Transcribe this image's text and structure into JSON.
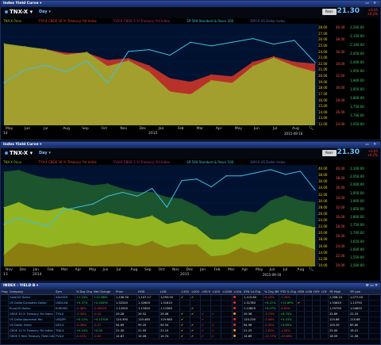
{
  "top_chart": {
    "window_title": "Index Yield Curve",
    "symbol": "TNX-X",
    "period": "Day",
    "rt_button": "Real-Time",
    "last": "21.30",
    "change_lines": [
      "+0.05",
      "+0.2%"
    ],
    "legend": [
      {
        "text": "TNX-X Price",
        "color": "#8fbf3a"
      },
      {
        "text": "TYX-X CBOE 30 Yr Treasury Yld Index",
        "color": "#e8412c"
      },
      {
        "text": "FVX-X CBOE 5 Yr Treasury Yld Index",
        "color": "#c02a8a"
      },
      {
        "text": "SP-500 Standard & Poors 500",
        "color": "#3bc2e6"
      },
      {
        "text": "DXY-X US Dollar Index",
        "color": "#5a6fd0"
      }
    ],
    "x_labels": [
      "May",
      "Jun",
      "Jul",
      "Aug",
      "Sep",
      "Oct",
      "Nov",
      "Dec",
      "Jan",
      "Feb",
      "Mar",
      "Apr",
      "May",
      "Jun",
      "Jul",
      "Aug"
    ],
    "year_left": "14",
    "year_mid": "2015",
    "date_stamp": "2015-09-16",
    "y_cols": [
      {
        "color": "#f0d030",
        "labels": [
          "28.00",
          "27.00",
          "26.00",
          "25.00",
          "24.00",
          "23.00",
          "22.00",
          "21.00",
          "20.00",
          "19.00",
          "18.00",
          "17.00",
          "16.00",
          "15.00",
          "14.00",
          "13.00",
          "12.00"
        ]
      },
      {
        "color": "#ff5a5a",
        "labels": [
          "40.00",
          "38.00",
          "36.00",
          "34.00",
          "32.00",
          "30.00",
          "28.00",
          "26.00",
          "24.00"
        ]
      },
      {
        "color": "#3bd06a",
        "labels": [
          "2,200.00",
          "2,150.00",
          "2,100.00",
          "2,050.00",
          "2,000.00",
          "1,950.00",
          "1,900.00",
          "1,850.00",
          "1,800.00",
          "1,750.00",
          "1,700.00",
          "1,650.00"
        ]
      }
    ],
    "chart_data": {
      "type": "area",
      "x": [
        "May",
        "Jun",
        "Jul",
        "Aug",
        "Sep",
        "Oct",
        "Nov",
        "Dec",
        "Jan",
        "Feb",
        "Mar",
        "Apr",
        "May",
        "Jun",
        "Jul",
        "Aug"
      ],
      "series": [
        {
          "name": "TYX-X",
          "color": "#c8352a",
          "values": [
            34,
            33.5,
            33,
            32,
            32,
            30,
            30.5,
            28.5,
            25,
            24,
            26,
            25.5,
            29.5,
            31,
            29.5,
            29
          ]
        },
        {
          "name": "TNX-X",
          "color": "#9fa830",
          "values": [
            26.5,
            26,
            25.5,
            24.5,
            25,
            22.5,
            23.5,
            21.5,
            18,
            17.5,
            20,
            19.5,
            22.5,
            24,
            22.5,
            21.5
          ]
        },
        {
          "name": "SP-500",
          "color": "#3bc2e6",
          "values": [
            1880,
            1950,
            1975,
            1940,
            2000,
            1880,
            2050,
            2060,
            2030,
            2100,
            2080,
            2100,
            2120,
            2090,
            2110,
            1990
          ]
        }
      ]
    }
  },
  "bottom_chart": {
    "window_title": "Index Yield Curve",
    "symbol": "TNX-X",
    "period": "Day",
    "rt_button": "Real-Time",
    "last": "21.30",
    "change_lines": [
      "+0.05",
      "+0.2%"
    ],
    "legend": [
      {
        "text": "TNX-X Price",
        "color": "#8fbf3a"
      },
      {
        "text": "TYX-X CBOE 30 Yr Treasury Yld Index",
        "color": "#e8412c"
      },
      {
        "text": "FVX-X CBOE 5 Yr Treasury Yld Index",
        "color": "#c02a8a"
      },
      {
        "text": "SP-500 Standard & Poors 500",
        "color": "#3bc2e6"
      },
      {
        "text": "DXY-X US Dollar Index",
        "color": "#5a6fd0"
      }
    ],
    "x_labels": [
      "Nov",
      "Dec",
      "Jan",
      "Feb",
      "Mar",
      "Apr",
      "May",
      "Jun",
      "Jul",
      "Aug",
      "Sep",
      "Oct",
      "Nov",
      "Dec",
      "Jan",
      "Feb",
      "Mar",
      "Apr",
      "May",
      "Jun",
      "Jul",
      "Aug"
    ],
    "year_left": "13",
    "year_a": "2014",
    "year_b": "2015",
    "date_stamp": "2015-09-16",
    "y_cols": [
      {
        "color": "#f0d030",
        "labels": [
          "40.00",
          "38.00",
          "36.00",
          "34.00",
          "32.00",
          "30.00",
          "28.00",
          "26.00",
          "24.00",
          "22.00",
          "20.00",
          "18.00",
          "16.00",
          "14.00",
          "12.00",
          "10.00"
        ]
      },
      {
        "color": "#ff5a5a",
        "labels": [
          "40.00",
          "38.00",
          "36.00",
          "34.00",
          "32.00",
          "30.00",
          "28.00",
          "26.00",
          "24.00",
          "22.00",
          "20.00"
        ]
      },
      {
        "color": "#3bd06a",
        "labels": [
          "2,100.00",
          "2,050.00",
          "2,000.00",
          "1,950.00",
          "1,900.00",
          "1,850.00",
          "1,800.00",
          "1,750.00",
          "1,700.00",
          "1,650.00",
          "1,600.00",
          "1,550.00",
          "1,500.00"
        ]
      }
    ],
    "chart_data": {
      "type": "area",
      "x": [
        "Nov",
        "Dec",
        "Jan",
        "Feb",
        "Mar",
        "Apr",
        "May",
        "Jun",
        "Jul",
        "Aug",
        "Sep",
        "Oct",
        "Nov",
        "Dec",
        "Jan",
        "Feb",
        "Mar",
        "Apr",
        "May",
        "Jun",
        "Jul",
        "Aug"
      ],
      "series": [
        {
          "name": "TYX-X",
          "color": "#1d5a2e",
          "values": [
            38,
            38.5,
            37,
            36,
            36,
            35,
            34,
            34.5,
            33,
            32,
            32,
            30.5,
            30,
            28,
            25,
            25,
            26.5,
            26,
            29.5,
            31,
            29.5,
            29
          ]
        },
        {
          "name": "TNX-X",
          "color": "#9bbd1f",
          "values": [
            27.5,
            29,
            27,
            26.5,
            27.5,
            26.5,
            25,
            26,
            25,
            24,
            25,
            22.5,
            23.5,
            21.5,
            18,
            18,
            20,
            19.5,
            22.5,
            24,
            22.5,
            21.5
          ]
        },
        {
          "name": "FVX-X",
          "color": "#8a7a10",
          "values": [
            13.5,
            17,
            16.5,
            15.5,
            16.5,
            17,
            16,
            16.5,
            17,
            16,
            17.5,
            15.5,
            16.5,
            16.5,
            13,
            13.5,
            15.5,
            14,
            15.5,
            17,
            16.5,
            15
          ]
        },
        {
          "name": "SP-500",
          "color": "#3bc2e6",
          "values": [
            1770,
            1810,
            1780,
            1760,
            1860,
            1880,
            1900,
            1950,
            1975,
            1950,
            2000,
            1880,
            2050,
            2060,
            2010,
            2080,
            2080,
            2100,
            2120,
            2090,
            2110,
            1990
          ]
        }
      ]
    }
  },
  "table": {
    "window_title": "INDEX - YIELD B",
    "headers": [
      "Flag",
      "Company",
      "Sym",
      "% Day Chg",
      "Net Change",
      "Price",
      "HOD",
      "LOD",
      "<150 MA",
      "<200 MA",
      "<50 MA",
      "<100 MA",
      "<1000 MA",
      "<10d MA",
      "SYN 1d Chg",
      "% Chg 3M",
      "YTD % Chg",
      "HOW",
      "LOW",
      "HOY",
      "LOY",
      "YR High",
      "YR Low"
    ],
    "rows": [
      {
        "flag": "",
        "company": "Gold/US Dollar",
        "sym": "XAUUSD",
        "pct": "+1.24%",
        "net": "+13.3961",
        "price": "1,106.30",
        "hod": "1,107.17",
        "lod": "1,093.95",
        "m150": "chk",
        "m200": "chk",
        "m50": "",
        "m100": "",
        "m1000": "",
        "m10": "dot-red",
        "syn": "1,115.80",
        "chg3m": "-6.10%",
        "ytd": "-7.20%",
        "how": "",
        "low": "",
        "hoy": "",
        "loy": "",
        "yrh": "1,308.10",
        "yrl": "1,077.00",
        "tone": "pos"
      },
      {
        "flag": "",
        "company": "US Dollar/Canadian Dollar",
        "sym": "USDCAD",
        "pct": "+0.37%",
        "net": "+0.00492",
        "price": "1.32240",
        "hod": "1.32600",
        "lod": "1.31810",
        "m150": "",
        "m200": "",
        "m50": "",
        "m100": "",
        "m1000": "",
        "m10": "dot-red",
        "syn": "1.31780",
        "chg3m": "+6.21%",
        "ytd": "+13.89%",
        "how": "chk",
        "low": "",
        "hoy": "",
        "loy": "",
        "yrh": "1.33620",
        "yrl": "1.13750",
        "tone": "pos"
      },
      {
        "flag": "",
        "company": "Euro/US Dollar",
        "sym": "EURUSD",
        "pct": "-0.38%",
        "net": "-0.00425",
        "price": "1.12500",
        "hod": "1.13300",
        "lod": "1.12360",
        "m150": "",
        "m200": "chk",
        "m50": "",
        "m100": "",
        "m1000": "",
        "m10": "dot-red",
        "syn": "1.12820",
        "chg3m": "+0.07%",
        "ytd": "-6.81%",
        "how": "",
        "low": "",
        "hoy": "",
        "loy": "",
        "yrh": "1.29700",
        "yrl": "1.04620",
        "tone": "neg"
      },
      {
        "flag": "",
        "company": "CBOE 30 Yr Treasury Yld Index",
        "sym": "TYX-X",
        "pct": "-0.34%",
        "net": "-0.10",
        "price": "29.26",
        "hod": "29.52",
        "lod": "29.08",
        "m150": "chk",
        "m200": "chk",
        "m50": "rchk",
        "m100": "rchk",
        "m1000": "",
        "m10": "dot-orange",
        "syn": "29.36",
        "chg3m": "-3.75%",
        "ytd": "+6.79%",
        "how": "",
        "low": "",
        "hoy": "",
        "loy": "",
        "yrh": "32.89",
        "yrl": "22.25",
        "tone": "neg"
      },
      {
        "flag": "",
        "company": "US Dollar/Japanese Yen",
        "sym": "USDJPY",
        "pct": "+0.12%",
        "net": "+0.15706",
        "price": "120.390",
        "hod": "120.460",
        "lod": "119.980",
        "m150": "chk",
        "m200": "",
        "m50": "rchk",
        "m100": "",
        "m1000": "",
        "m10": "dot-red",
        "syn": "120.230",
        "chg3m": "-2.44%",
        "ytd": "+0.43%",
        "how": "",
        "low": "",
        "hoy": "",
        "loy": "",
        "yrh": "125.86",
        "yrl": "115.86",
        "tone": "pos"
      },
      {
        "flag": "",
        "company": "US Dollar Index",
        "sym": "DXY-X",
        "pct": "-0.28%",
        "net": "-0.27",
        "price": "94.69",
        "hod": "95.20",
        "lod": "94.54",
        "m150": "chk",
        "m200": "chk",
        "m50": "rchk",
        "m100": "rchk",
        "m1000": "",
        "m10": "dot-red",
        "syn": "94.96",
        "chg3m": "-0.32%",
        "ytd": "+4.89%",
        "how": "",
        "low": "",
        "hoy": "",
        "loy": "",
        "yrh": "100.39",
        "yrl": "85.80",
        "tone": "neg"
      },
      {
        "flag": "",
        "company": "CBOE 10 Yr Treasury Yld Index",
        "sym": "TNX-X",
        "pct": "+0.24%",
        "net": "+0.05",
        "price": "21.30",
        "hod": "21.55",
        "lod": "21.10",
        "m150": "chk",
        "m200": "chk",
        "m50": "rchk",
        "m100": "rchk",
        "m1000": "",
        "m10": "dot-orange",
        "syn": "21.25",
        "chg3m": "-7.81%",
        "ytd": "-1.20%",
        "how": "",
        "low": "",
        "hoy": "",
        "loy": "",
        "yrh": "25.00",
        "yrl": "16.41",
        "tone": "pos"
      },
      {
        "flag": "",
        "company": "CBOE 5 Year Treasury Yield Index",
        "sym": "FVX-X",
        "pct": "-0.13%",
        "net": "-0.02",
        "price": "14.87",
        "hod": "15.06",
        "lod": "14.74",
        "m150": "chk",
        "m200": "chk",
        "m50": "rchk",
        "m100": "rchk",
        "m1000": "",
        "m10": "dot-orange",
        "syn": "14.89",
        "chg3m": "-11.17%",
        "ytd": "-10.48%",
        "how": "",
        "low": "",
        "hoy": "",
        "loy": "",
        "yrh": "18.59",
        "yrl": "11.58",
        "tone": "neg"
      }
    ]
  }
}
